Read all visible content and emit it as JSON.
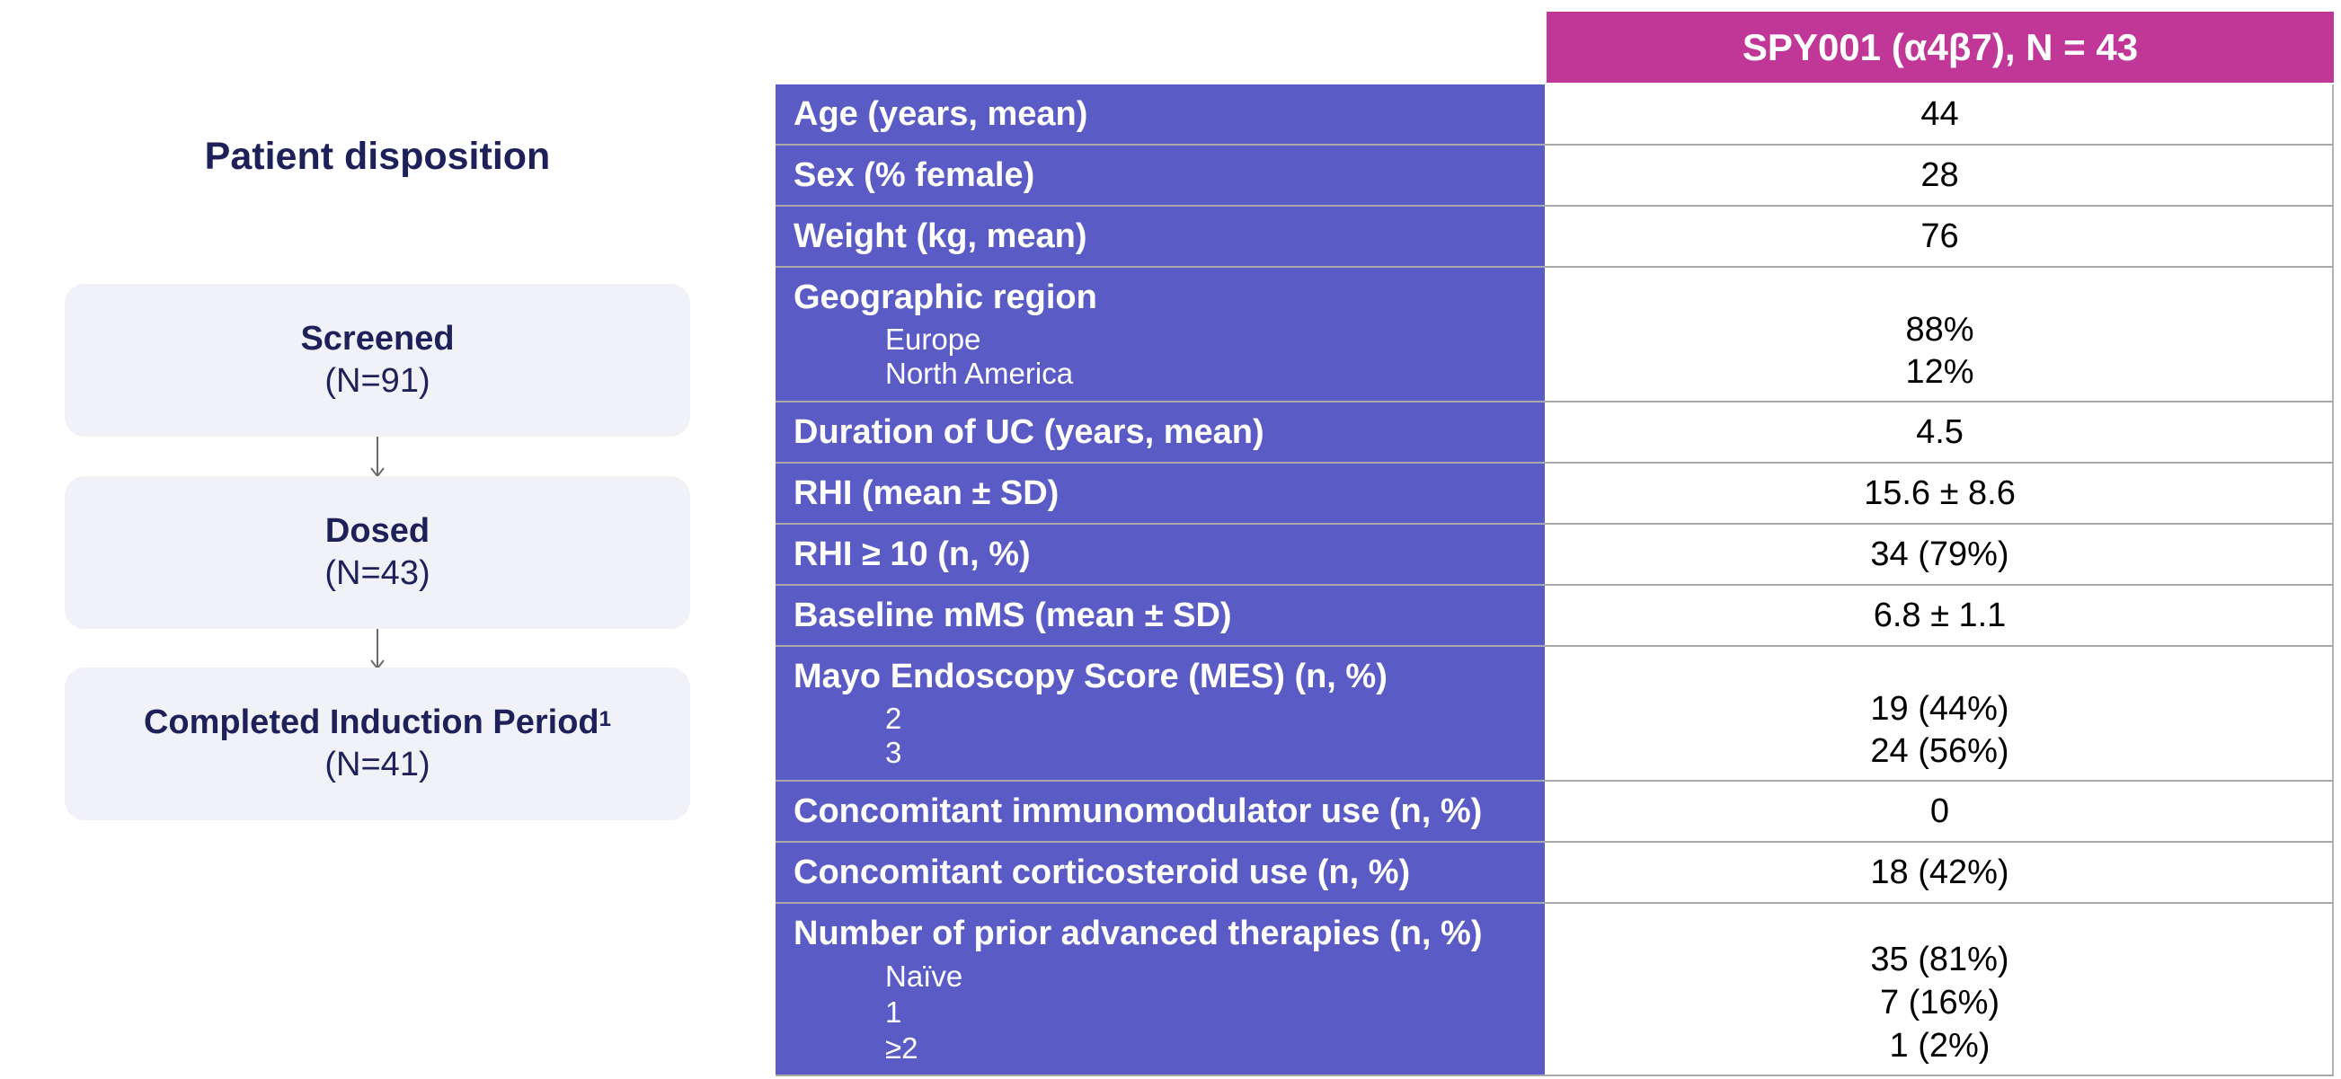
{
  "disposition": {
    "title": "Patient disposition",
    "steps": [
      {
        "label": "Screened",
        "sup": "",
        "n": "(N=91)"
      },
      {
        "label": "Dosed",
        "sup": "",
        "n": "(N=43)"
      },
      {
        "label": "Completed Induction Period",
        "sup": "1",
        "n": "(N=41)"
      }
    ]
  },
  "table": {
    "column_header": "SPY001 (α4β7), N = 43",
    "rows": [
      {
        "label": "Age (years, mean)",
        "value": "44"
      },
      {
        "label": "Sex (% female)",
        "value": "28"
      },
      {
        "label": "Weight (kg, mean)",
        "value": "76"
      },
      {
        "label": "Geographic region",
        "sub_labels": [
          "Europe",
          "North America"
        ],
        "sub_values": [
          "88%",
          "12%"
        ]
      },
      {
        "label": "Duration of UC (years, mean)",
        "value": "4.5"
      },
      {
        "label": "RHI (mean ± SD)",
        "value": "15.6 ± 8.6"
      },
      {
        "label": "RHI ≥ 10 (n, %)",
        "value": "34 (79%)"
      },
      {
        "label": "Baseline mMS (mean ± SD)",
        "value": "6.8 ± 1.1"
      },
      {
        "label": "Mayo Endoscopy Score (MES) (n, %)",
        "sub_labels": [
          "2",
          "3"
        ],
        "sub_values": [
          "19 (44%)",
          "24 (56%)"
        ]
      },
      {
        "label": "Concomitant immunomodulator use (n, %)",
        "value": "0"
      },
      {
        "label": "Concomitant corticosteroid use (n, %)",
        "value": "18 (42%)"
      },
      {
        "label": "Number of prior advanced therapies (n, %)",
        "sub_labels": [
          "Naïve",
          "1",
          "≥2"
        ],
        "sub_values": [
          "35 (81%)",
          "7 (16%)",
          "1 (2%)"
        ]
      }
    ]
  },
  "colors": {
    "header_magenta": "#c03797",
    "label_purple": "#5b5bc6",
    "navy_text": "#1e2159",
    "box_fill": "#f1f1f8"
  }
}
